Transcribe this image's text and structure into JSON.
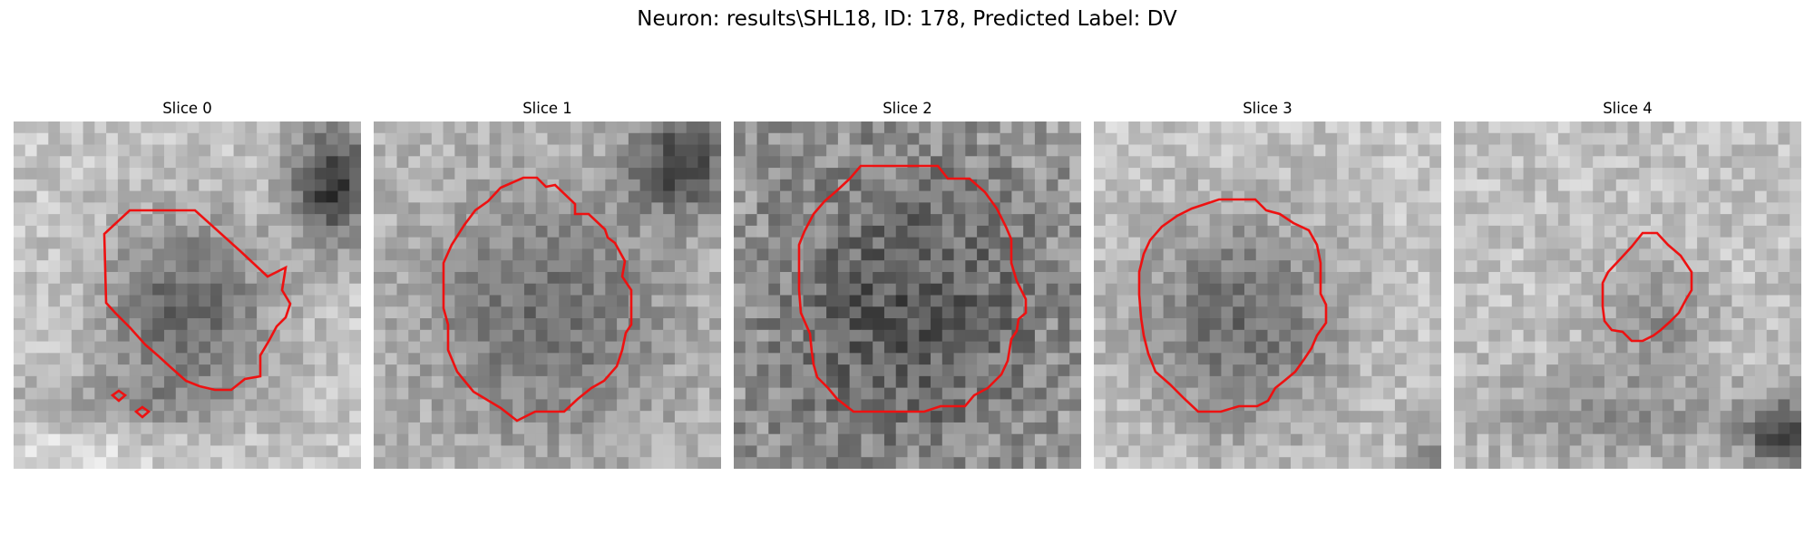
{
  "figure": {
    "title": "Neuron: results\\SHL18, ID: 178, Predicted Label: DV",
    "contour_color": "#ee1111"
  },
  "panels": [
    {
      "title": "Slice 0",
      "seed": 11,
      "pattern": "slice0"
    },
    {
      "title": "Slice 1",
      "seed": 23,
      "pattern": "slice1"
    },
    {
      "title": "Slice 2",
      "seed": 37,
      "pattern": "slice2"
    },
    {
      "title": "Slice 3",
      "seed": 41,
      "pattern": "slice3"
    },
    {
      "title": "Slice 4",
      "seed": 59,
      "pattern": "slice4"
    }
  ]
}
